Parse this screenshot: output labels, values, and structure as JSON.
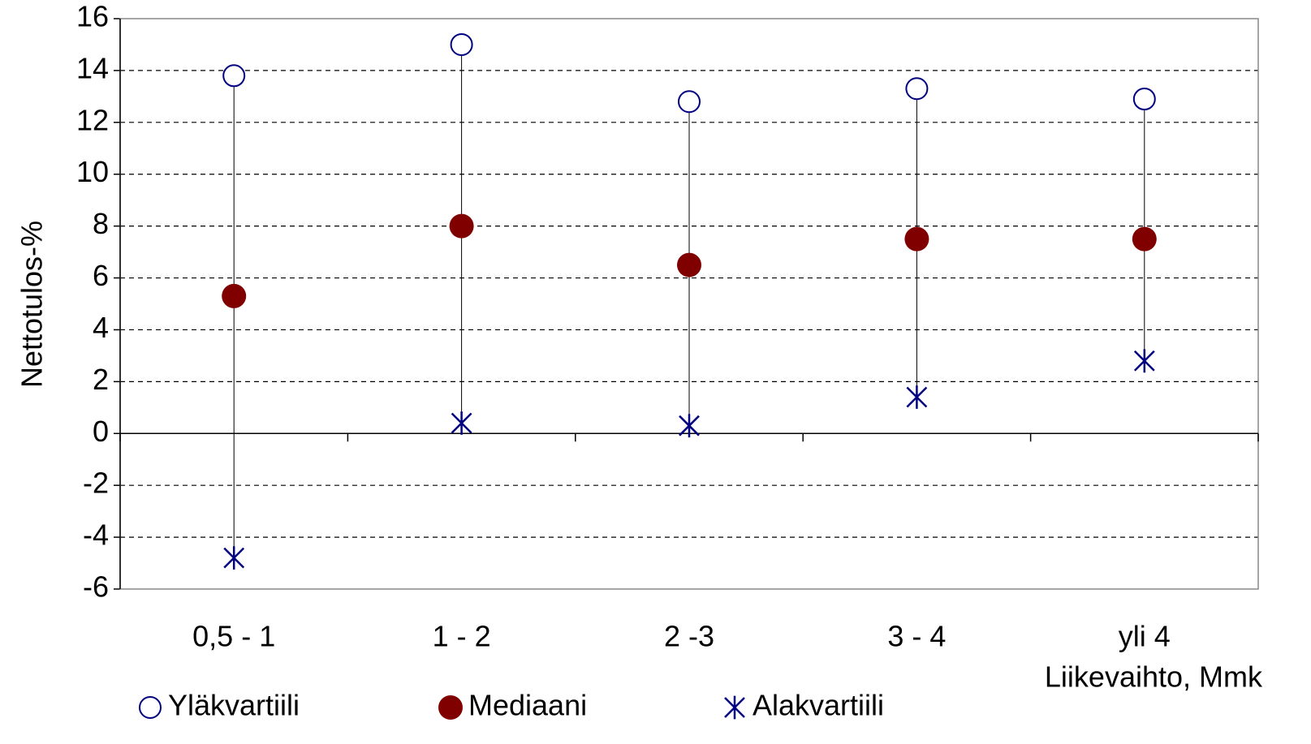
{
  "chart_data": {
    "type": "high-low",
    "y_label": "Nettotulos-%",
    "x_label": "Liikevaihto, Mmk",
    "categories": [
      "0,5 - 1",
      "1 - 2",
      "2 -3",
      "3 - 4",
      "yli 4"
    ],
    "series": [
      {
        "name": "Yläkvartiili",
        "color": "#000080",
        "marker": "open-circle",
        "values": [
          13.8,
          15.0,
          12.8,
          13.3,
          12.9
        ]
      },
      {
        "name": "Mediaani",
        "color": "#800000",
        "marker": "filled-circle",
        "values": [
          5.3,
          8.0,
          6.5,
          7.5,
          7.5
        ]
      },
      {
        "name": "Alakvartiili",
        "color": "#000080",
        "marker": "asterisk",
        "values": [
          -4.8,
          0.4,
          0.3,
          1.4,
          2.8
        ]
      }
    ],
    "ylim": [
      -6,
      16
    ],
    "yticks": [
      -6,
      -4,
      -2,
      0,
      2,
      4,
      6,
      8,
      10,
      12,
      14,
      16
    ],
    "grid": true
  }
}
